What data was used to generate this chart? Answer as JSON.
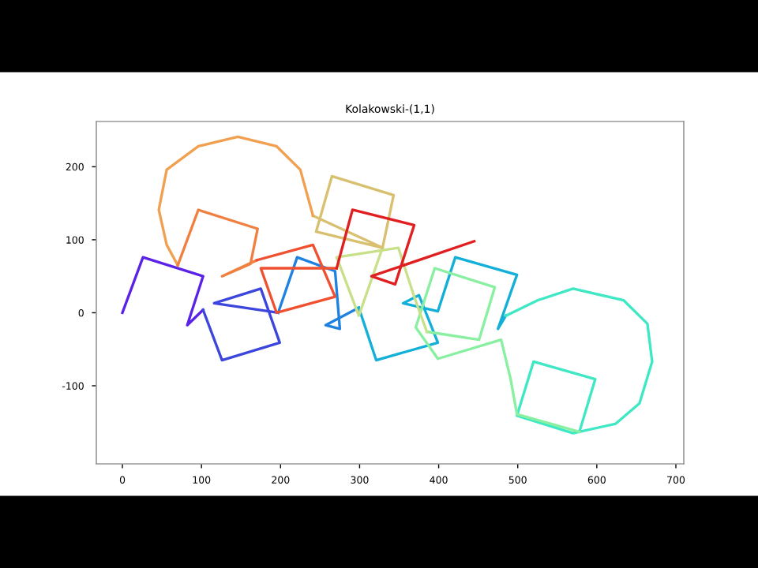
{
  "chart_data": {
    "type": "line",
    "title": "Kolakowski-(1,1)",
    "xlim": [
      -33,
      710
    ],
    "ylim": [
      -207,
      262
    ],
    "xticks": [
      0,
      100,
      200,
      300,
      400,
      500,
      600,
      700
    ],
    "yticks": [
      -100,
      0,
      100,
      200
    ],
    "grid": false,
    "legend": false,
    "marker": "none",
    "line_style": "solid",
    "series": [
      {
        "color": "#5a22e6",
        "x": [
          0,
          26,
          102,
          82,
          102
        ],
        "values": [
          0,
          76,
          50,
          -17,
          4
        ]
      },
      {
        "color": "#3c46dc",
        "x": [
          102,
          126,
          199,
          175,
          116,
          197
        ],
        "values": [
          4,
          -65,
          -41,
          33,
          13,
          0
        ]
      },
      {
        "color": "#1f82e0",
        "x": [
          197,
          221,
          269,
          275,
          257,
          299
        ],
        "values": [
          0,
          76,
          57,
          -22,
          -17,
          7
        ]
      },
      {
        "color": "#12b0d8",
        "x": [
          299,
          321,
          399,
          375,
          355,
          399,
          421,
          499,
          475,
          485
        ],
        "values": [
          7,
          -65,
          -41,
          24,
          13,
          2,
          76,
          52,
          -22,
          -4
        ]
      },
      {
        "color": "#3ee8c4",
        "x": [
          485,
          525,
          570,
          634,
          664,
          670,
          654,
          624,
          570,
          499,
          520,
          598,
          578
        ],
        "values": [
          -4,
          17,
          33,
          17,
          -15,
          -67,
          -124,
          -152,
          -165,
          -141,
          -67,
          -91,
          -163
        ]
      },
      {
        "color": "#88f0a0",
        "x": [
          578,
          499,
          491,
          479,
          399,
          371,
          395,
          471,
          451,
          385
        ],
        "values": [
          -163,
          -139,
          -91,
          -37,
          -63,
          -20,
          61,
          35,
          -37,
          -26
        ]
      },
      {
        "color": "#c8e08a",
        "x": [
          385,
          369,
          349,
          271,
          299,
          329
        ],
        "values": [
          -26,
          22,
          89,
          76,
          -4,
          89
        ]
      },
      {
        "color": "#d8c070",
        "x": [
          329,
          343,
          265,
          245,
          329,
          241
        ],
        "values": [
          89,
          161,
          187,
          111,
          89,
          133
        ]
      },
      {
        "color": "#f0a050",
        "x": [
          241,
          225,
          195,
          146,
          96,
          56,
          46,
          56,
          70
        ],
        "values": [
          133,
          196,
          228,
          241,
          228,
          196,
          141,
          93,
          65
        ]
      },
      {
        "color": "#f08040",
        "x": [
          70,
          96,
          171,
          162,
          126,
          170
        ],
        "values": [
          65,
          141,
          115,
          67,
          50,
          72
        ]
      },
      {
        "color": "#f05030",
        "x": [
          170,
          241,
          269,
          195,
          175,
          271
        ],
        "values": [
          72,
          93,
          22,
          0,
          61,
          61
        ]
      },
      {
        "color": "#e02020",
        "x": [
          271,
          291,
          369,
          345,
          315,
          445
        ],
        "values": [
          61,
          141,
          120,
          39,
          50,
          98
        ]
      }
    ]
  }
}
